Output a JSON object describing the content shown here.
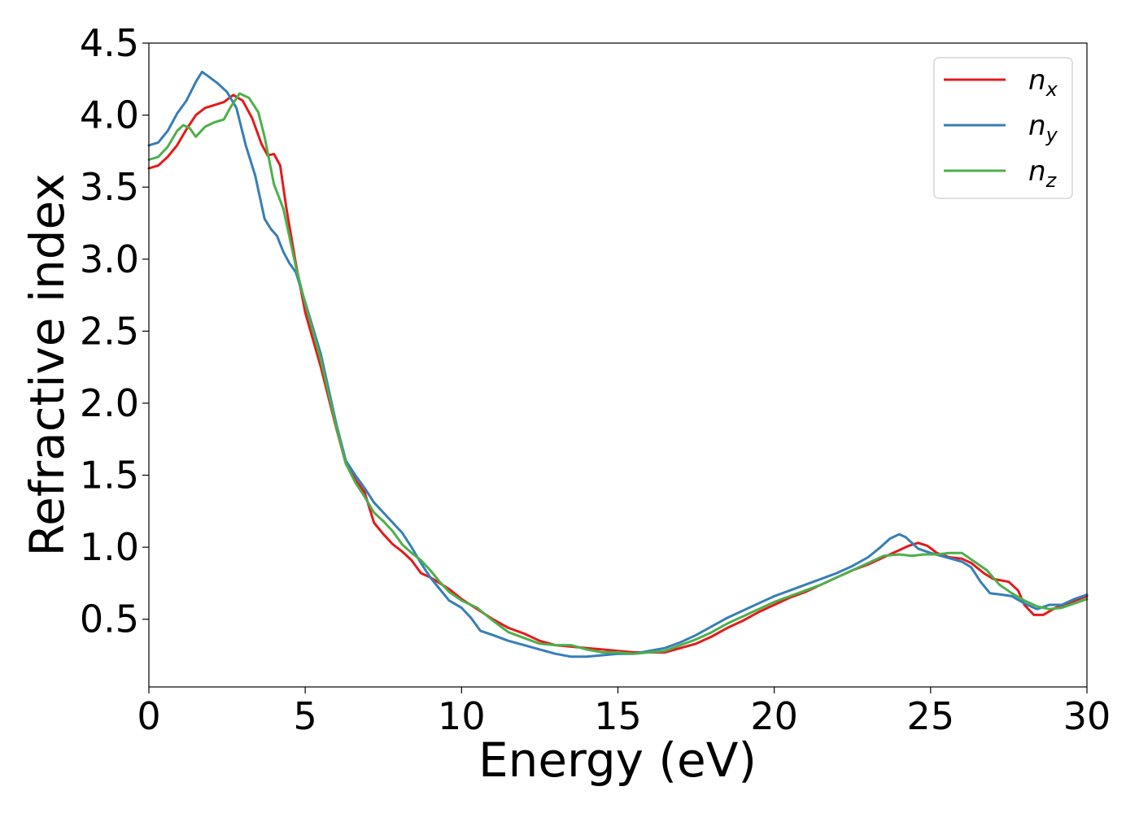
{
  "chart_data": {
    "type": "line",
    "title": "",
    "xlabel": "Energy (eV)",
    "ylabel": "Refractive index",
    "xlim": [
      0,
      30
    ],
    "ylim": [
      0.03,
      4.5
    ],
    "xticks": [
      0,
      5,
      10,
      15,
      20,
      25,
      30
    ],
    "yticks": [
      0.5,
      1.0,
      1.5,
      2.0,
      2.5,
      3.0,
      3.5,
      4.0,
      4.5
    ],
    "xtick_labels": [
      "0",
      "5",
      "10",
      "15",
      "20",
      "25",
      "30"
    ],
    "ytick_labels": [
      "0.5",
      "1.0",
      "1.5",
      "2.0",
      "2.5",
      "3.0",
      "3.5",
      "4.0",
      "4.5"
    ],
    "grid": false,
    "legend_position": "top-right",
    "series": [
      {
        "name": "n_x",
        "base": "n",
        "sub": "x",
        "color": "#e41a1c",
        "points": [
          [
            0,
            3.63
          ],
          [
            0.3,
            3.65
          ],
          [
            0.6,
            3.71
          ],
          [
            0.9,
            3.79
          ],
          [
            1.2,
            3.9
          ],
          [
            1.5,
            4.0
          ],
          [
            1.8,
            4.05
          ],
          [
            2.1,
            4.07
          ],
          [
            2.4,
            4.09
          ],
          [
            2.7,
            4.14
          ],
          [
            3.0,
            4.1
          ],
          [
            3.3,
            3.98
          ],
          [
            3.6,
            3.8
          ],
          [
            3.8,
            3.72
          ],
          [
            4.0,
            3.73
          ],
          [
            4.2,
            3.65
          ],
          [
            4.4,
            3.35
          ],
          [
            4.7,
            2.97
          ],
          [
            5.0,
            2.63
          ],
          [
            5.5,
            2.25
          ],
          [
            6.0,
            1.82
          ],
          [
            6.3,
            1.58
          ],
          [
            6.6,
            1.47
          ],
          [
            6.9,
            1.38
          ],
          [
            7.2,
            1.17
          ],
          [
            7.5,
            1.09
          ],
          [
            7.8,
            1.02
          ],
          [
            8.1,
            0.97
          ],
          [
            8.4,
            0.91
          ],
          [
            8.7,
            0.82
          ],
          [
            9.0,
            0.79
          ],
          [
            9.3,
            0.75
          ],
          [
            9.6,
            0.71
          ],
          [
            10.0,
            0.64
          ],
          [
            10.5,
            0.57
          ],
          [
            11.0,
            0.5
          ],
          [
            11.5,
            0.44
          ],
          [
            12.0,
            0.4
          ],
          [
            12.5,
            0.35
          ],
          [
            13.0,
            0.32
          ],
          [
            13.5,
            0.31
          ],
          [
            14.0,
            0.3
          ],
          [
            14.5,
            0.29
          ],
          [
            15.0,
            0.28
          ],
          [
            15.5,
            0.27
          ],
          [
            16.0,
            0.27
          ],
          [
            16.5,
            0.27
          ],
          [
            17.0,
            0.3
          ],
          [
            17.5,
            0.33
          ],
          [
            18.0,
            0.38
          ],
          [
            18.5,
            0.44
          ],
          [
            19.0,
            0.49
          ],
          [
            19.5,
            0.55
          ],
          [
            20.0,
            0.6
          ],
          [
            20.5,
            0.65
          ],
          [
            21.0,
            0.69
          ],
          [
            21.5,
            0.74
          ],
          [
            22.0,
            0.79
          ],
          [
            22.5,
            0.84
          ],
          [
            23.0,
            0.88
          ],
          [
            23.5,
            0.93
          ],
          [
            24.0,
            0.98
          ],
          [
            24.3,
            1.01
          ],
          [
            24.6,
            1.03
          ],
          [
            24.9,
            1.01
          ],
          [
            25.2,
            0.96
          ],
          [
            25.6,
            0.93
          ],
          [
            26.0,
            0.92
          ],
          [
            26.3,
            0.89
          ],
          [
            26.7,
            0.82
          ],
          [
            27.0,
            0.78
          ],
          [
            27.5,
            0.76
          ],
          [
            27.8,
            0.7
          ],
          [
            28.0,
            0.6
          ],
          [
            28.3,
            0.53
          ],
          [
            28.6,
            0.53
          ],
          [
            29.0,
            0.58
          ],
          [
            29.5,
            0.62
          ],
          [
            30.0,
            0.66
          ]
        ]
      },
      {
        "name": "n_y",
        "base": "n",
        "sub": "y",
        "color": "#377eb8",
        "points": [
          [
            0,
            3.79
          ],
          [
            0.3,
            3.81
          ],
          [
            0.6,
            3.89
          ],
          [
            0.9,
            4.01
          ],
          [
            1.2,
            4.1
          ],
          [
            1.5,
            4.23
          ],
          [
            1.7,
            4.3
          ],
          [
            1.9,
            4.27
          ],
          [
            2.2,
            4.22
          ],
          [
            2.5,
            4.16
          ],
          [
            2.8,
            4.05
          ],
          [
            3.1,
            3.79
          ],
          [
            3.4,
            3.58
          ],
          [
            3.7,
            3.28
          ],
          [
            3.9,
            3.21
          ],
          [
            4.1,
            3.16
          ],
          [
            4.3,
            3.05
          ],
          [
            4.5,
            2.97
          ],
          [
            4.7,
            2.91
          ],
          [
            5.0,
            2.7
          ],
          [
            5.5,
            2.34
          ],
          [
            6.0,
            1.85
          ],
          [
            6.3,
            1.6
          ],
          [
            6.6,
            1.5
          ],
          [
            6.9,
            1.41
          ],
          [
            7.2,
            1.31
          ],
          [
            7.5,
            1.24
          ],
          [
            7.8,
            1.17
          ],
          [
            8.1,
            1.1
          ],
          [
            8.4,
            1.0
          ],
          [
            8.7,
            0.89
          ],
          [
            9.0,
            0.79
          ],
          [
            9.3,
            0.71
          ],
          [
            9.6,
            0.63
          ],
          [
            10.0,
            0.58
          ],
          [
            10.3,
            0.51
          ],
          [
            10.6,
            0.42
          ],
          [
            11.0,
            0.39
          ],
          [
            11.5,
            0.35
          ],
          [
            12.0,
            0.32
          ],
          [
            12.5,
            0.29
          ],
          [
            13.0,
            0.26
          ],
          [
            13.5,
            0.24
          ],
          [
            14.0,
            0.24
          ],
          [
            14.5,
            0.25
          ],
          [
            15.0,
            0.26
          ],
          [
            15.5,
            0.26
          ],
          [
            16.0,
            0.28
          ],
          [
            16.5,
            0.3
          ],
          [
            17.0,
            0.34
          ],
          [
            17.5,
            0.39
          ],
          [
            18.0,
            0.45
          ],
          [
            18.5,
            0.51
          ],
          [
            19.0,
            0.56
          ],
          [
            19.5,
            0.61
          ],
          [
            20.0,
            0.66
          ],
          [
            20.5,
            0.7
          ],
          [
            21.0,
            0.74
          ],
          [
            21.5,
            0.78
          ],
          [
            22.0,
            0.82
          ],
          [
            22.5,
            0.87
          ],
          [
            23.0,
            0.93
          ],
          [
            23.4,
            1.0
          ],
          [
            23.7,
            1.06
          ],
          [
            24.0,
            1.09
          ],
          [
            24.2,
            1.07
          ],
          [
            24.6,
            0.99
          ],
          [
            25.0,
            0.96
          ],
          [
            25.5,
            0.93
          ],
          [
            26.0,
            0.9
          ],
          [
            26.3,
            0.86
          ],
          [
            26.6,
            0.76
          ],
          [
            26.9,
            0.68
          ],
          [
            27.3,
            0.67
          ],
          [
            27.6,
            0.66
          ],
          [
            28.0,
            0.61
          ],
          [
            28.4,
            0.57
          ],
          [
            28.8,
            0.6
          ],
          [
            29.2,
            0.6
          ],
          [
            29.6,
            0.64
          ],
          [
            30.0,
            0.67
          ]
        ]
      },
      {
        "name": "n_z",
        "base": "n",
        "sub": "z",
        "color": "#4daf4a",
        "points": [
          [
            0,
            3.69
          ],
          [
            0.3,
            3.71
          ],
          [
            0.6,
            3.78
          ],
          [
            0.9,
            3.89
          ],
          [
            1.1,
            3.93
          ],
          [
            1.3,
            3.91
          ],
          [
            1.5,
            3.85
          ],
          [
            1.8,
            3.92
          ],
          [
            2.1,
            3.95
          ],
          [
            2.4,
            3.97
          ],
          [
            2.6,
            4.05
          ],
          [
            2.9,
            4.15
          ],
          [
            3.2,
            4.12
          ],
          [
            3.5,
            4.02
          ],
          [
            3.7,
            3.85
          ],
          [
            4.0,
            3.52
          ],
          [
            4.3,
            3.35
          ],
          [
            4.7,
            2.95
          ],
          [
            5.0,
            2.69
          ],
          [
            5.5,
            2.3
          ],
          [
            6.0,
            1.83
          ],
          [
            6.3,
            1.58
          ],
          [
            6.6,
            1.45
          ],
          [
            6.9,
            1.35
          ],
          [
            7.2,
            1.24
          ],
          [
            7.5,
            1.18
          ],
          [
            7.8,
            1.11
          ],
          [
            8.1,
            1.02
          ],
          [
            8.4,
            0.96
          ],
          [
            8.7,
            0.91
          ],
          [
            9.0,
            0.84
          ],
          [
            9.3,
            0.76
          ],
          [
            9.6,
            0.69
          ],
          [
            10.0,
            0.63
          ],
          [
            10.5,
            0.58
          ],
          [
            11.0,
            0.49
          ],
          [
            11.5,
            0.41
          ],
          [
            12.0,
            0.37
          ],
          [
            12.5,
            0.33
          ],
          [
            13.0,
            0.32
          ],
          [
            13.5,
            0.32
          ],
          [
            14.0,
            0.29
          ],
          [
            14.5,
            0.27
          ],
          [
            15.0,
            0.27
          ],
          [
            15.5,
            0.26
          ],
          [
            16.0,
            0.27
          ],
          [
            16.5,
            0.28
          ],
          [
            17.0,
            0.32
          ],
          [
            17.5,
            0.36
          ],
          [
            18.0,
            0.41
          ],
          [
            18.5,
            0.47
          ],
          [
            19.0,
            0.52
          ],
          [
            19.5,
            0.57
          ],
          [
            20.0,
            0.62
          ],
          [
            20.5,
            0.66
          ],
          [
            21.0,
            0.7
          ],
          [
            21.5,
            0.74
          ],
          [
            22.0,
            0.79
          ],
          [
            22.5,
            0.84
          ],
          [
            23.0,
            0.89
          ],
          [
            23.5,
            0.94
          ],
          [
            24.0,
            0.95
          ],
          [
            24.4,
            0.94
          ],
          [
            24.8,
            0.95
          ],
          [
            25.2,
            0.95
          ],
          [
            25.6,
            0.96
          ],
          [
            26.0,
            0.96
          ],
          [
            26.4,
            0.9
          ],
          [
            26.8,
            0.84
          ],
          [
            27.2,
            0.74
          ],
          [
            27.6,
            0.68
          ],
          [
            28.0,
            0.63
          ],
          [
            28.4,
            0.59
          ],
          [
            28.8,
            0.57
          ],
          [
            29.2,
            0.58
          ],
          [
            29.6,
            0.61
          ],
          [
            30.0,
            0.64
          ]
        ]
      }
    ]
  }
}
